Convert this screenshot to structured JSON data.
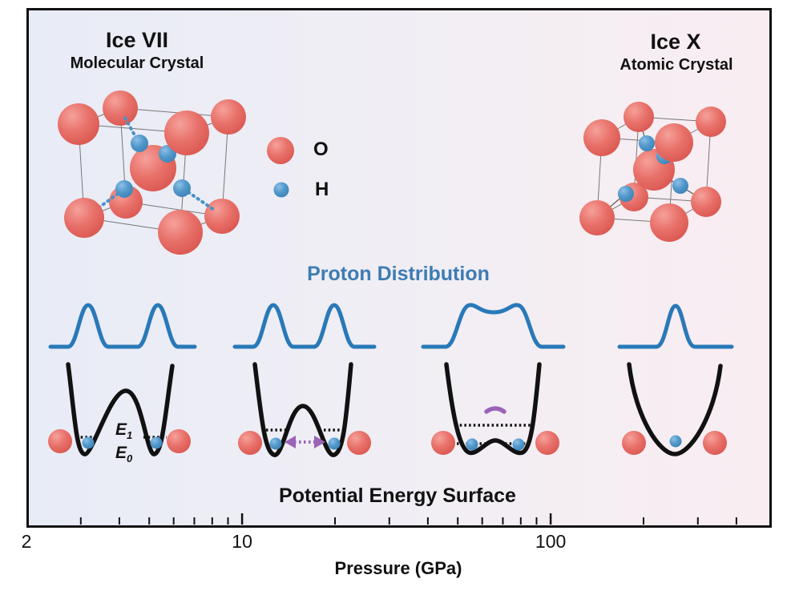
{
  "figure": {
    "phases": {
      "left": {
        "title": "Ice VII",
        "subtitle": "Molecular Crystal"
      },
      "right": {
        "title": "Ice X",
        "subtitle": "Atomic Crystal"
      }
    },
    "legend": {
      "o": {
        "label": "O",
        "color": "#e5685e"
      },
      "h": {
        "label": "H",
        "color": "#4a93c8"
      }
    },
    "sections": {
      "proton_distribution": "Proton Distribution",
      "potential_energy_surface": "Potential Energy Surface"
    },
    "energy_levels": {
      "e1": {
        "base": "E",
        "sub": "1"
      },
      "e0": {
        "base": "E",
        "sub": "0"
      }
    },
    "panels": [
      {
        "distribution_shape": "two separated peaks",
        "well_shape": "deep double well with high barrier",
        "annotations": [
          "E1 dotted level",
          "E0 dotted level"
        ]
      },
      {
        "distribution_shape": "two separated peaks",
        "well_shape": "double well with lower barrier",
        "annotations": [
          "dotted levels",
          "purple two-headed tunneling arrow"
        ]
      },
      {
        "distribution_shape": "broad merged double-hump",
        "well_shape": "flattened double well with small central bump",
        "annotations": [
          "upper dotted level",
          "lower dotted level",
          "purple over-barrier arc"
        ]
      },
      {
        "distribution_shape": "single peak",
        "well_shape": "single parabolic well",
        "annotations": []
      }
    ],
    "axis": {
      "title": "Pressure (GPa)",
      "scale": "log",
      "range_gpa": [
        2,
        510
      ],
      "tick_labels": [
        {
          "value": 2,
          "text": "2"
        },
        {
          "value": 10,
          "text": "10"
        },
        {
          "value": 100,
          "text": "100"
        }
      ],
      "major_ticks": [
        10,
        100
      ],
      "minor_ticks": [
        3,
        4,
        5,
        6,
        7,
        8,
        9,
        20,
        30,
        40,
        50,
        60,
        70,
        80,
        90,
        200,
        300,
        400
      ]
    },
    "colors": {
      "background_left": "#e8ecf6",
      "background_right": "#f9edf1",
      "distribution_curve": "#2979b8",
      "proton_distribution_text": "#3d7cb3",
      "potential_curve": "#111111",
      "oxygen": "#e5685e",
      "hydrogen": "#4a93c8",
      "tunneling_purple": "#9a63b8",
      "frame_border": "#111111"
    }
  }
}
